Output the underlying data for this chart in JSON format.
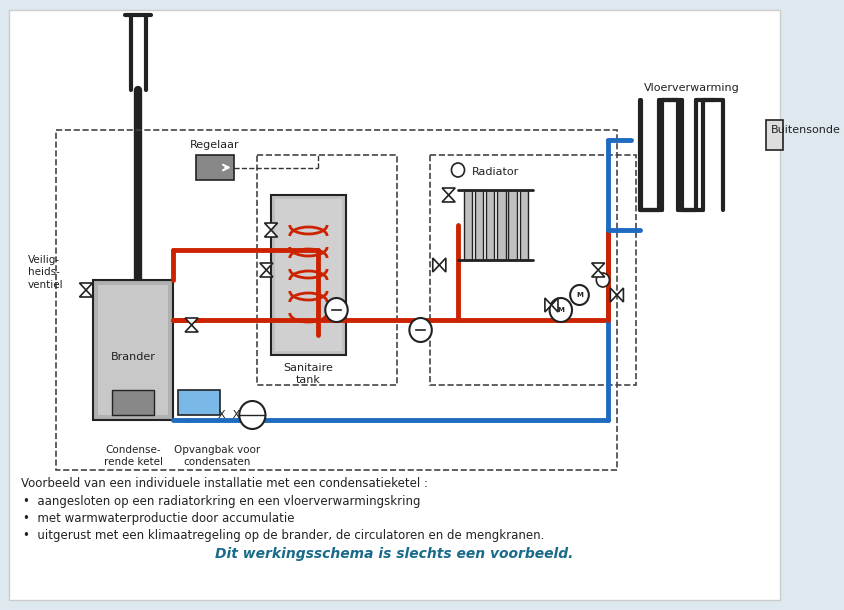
{
  "bg_color": "#dde8ef",
  "title_italic_bold": "Dit werkingsschema is slechts een voorbeeld.",
  "title_color": "#1a6b8a",
  "description_line0": "Voorbeeld van een individuele installatie met een condensatieketel :",
  "bullets": [
    "aangesloten op een radiatorkring en een vloerverwarmingskring",
    "met warmwaterproductie door accumulatie",
    "uitgerust met een klimaatregeling op de brander, de circulatoren en de mengkranen."
  ],
  "label_brander": "Brander",
  "label_condense": "Condense-\nrende ketel",
  "label_opvang": "Opvangbak voor\ncondensaten",
  "label_sanitaire": "Sanitaire\ntank",
  "label_radiator": "Radiator",
  "label_regelaar": "Regelaar",
  "label_veilig": "Veilig-\nheids-\nventiel",
  "label_buitensonde": "Buitensonde",
  "label_vloer": "Vloerverwarming",
  "red_color": "#cc2200",
  "blue_color": "#1e6bbf",
  "dark_line": "#222222",
  "gray_boiler": "#aaaaaa",
  "dashed_color": "#333333"
}
